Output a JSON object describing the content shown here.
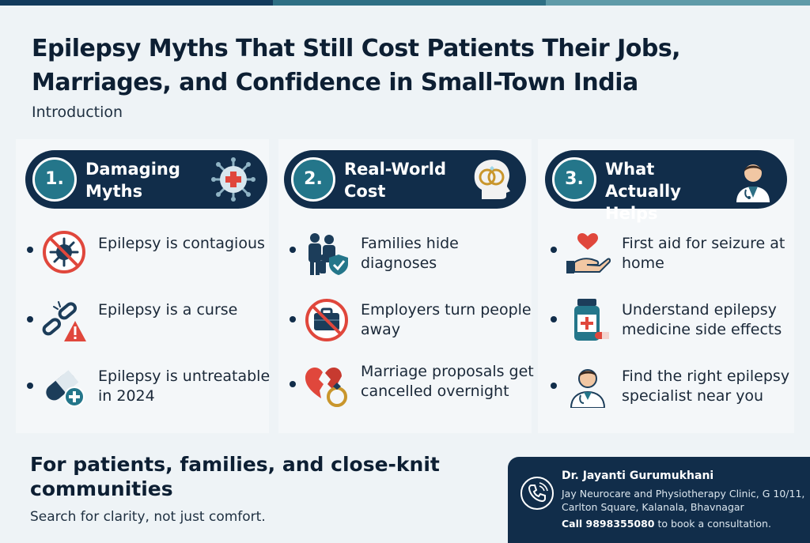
{
  "title": "Epilepsy Myths That Still Cost Patients Their Jobs, Marriages, and Confidence in Small-Town India",
  "intro": "Introduction",
  "columns": [
    {
      "number": "1.",
      "title": "Damaging Myths",
      "icon": "virus-medical-icon",
      "items": [
        {
          "text": "Epilepsy is contagious",
          "icon": "no-virus-icon"
        },
        {
          "text": "Epilepsy is a curse",
          "icon": "broken-chain-warning-icon"
        },
        {
          "text": "Epilepsy is untreatable in 2024",
          "icon": "capsule-plus-icon"
        }
      ]
    },
    {
      "number": "2.",
      "title": "Real-World Cost",
      "icon": "head-rings-icon",
      "items": [
        {
          "text": "Families hide diagnoses",
          "icon": "family-shield-icon"
        },
        {
          "text": "Employers turn people away",
          "icon": "no-briefcase-icon"
        },
        {
          "text": "Marriage proposals get cancelled overnight",
          "icon": "broken-heart-ring-icon"
        }
      ]
    },
    {
      "number": "3.",
      "title": "What Actually Helps",
      "icon": "doctor-icon",
      "items": [
        {
          "text": "First aid for seizure at home",
          "icon": "hand-heart-icon"
        },
        {
          "text": "Understand epilepsy medicine side effects",
          "icon": "medicine-bottle-icon"
        },
        {
          "text": "Find the right epilepsy specialist near you",
          "icon": "specialist-icon"
        }
      ]
    }
  ],
  "footer": {
    "title": "For patients, families, and close-knit communities",
    "subtitle": "Search for clarity, not just comfort.",
    "contact": {
      "name": "Dr. Jayanti Gurumukhani",
      "address": "Jay Neurocare and Physiotherapy Clinic, G 10/11, Carlton Square, Kalanala, Bhavnagar",
      "call_label": "Call 9898355080",
      "call_suffix": " to book a consultation."
    }
  },
  "colors": {
    "navy": "#112d4a",
    "teal": "#24768a",
    "red": "#e0473c",
    "background": "#eef3f6"
  }
}
